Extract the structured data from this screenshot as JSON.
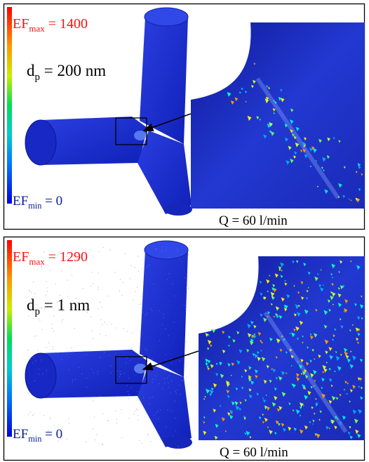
{
  "panels": [
    {
      "ef_max": {
        "symbol": "EF",
        "subscript": "max",
        "value": "= 1400"
      },
      "particle_size": {
        "symbol": "d",
        "subscript": "p",
        "value": "= 200 nm"
      },
      "ef_min": {
        "symbol": "EF",
        "subscript": "min",
        "value": "= 0"
      },
      "flow_rate": "Q = 60 l/min"
    },
    {
      "ef_max": {
        "symbol": "EF",
        "subscript": "max",
        "value": "= 1290"
      },
      "particle_size": {
        "symbol": "d",
        "subscript": "p",
        "value": "= 1 nm"
      },
      "ef_min": {
        "symbol": "EF",
        "subscript": "min",
        "value": "= 0"
      },
      "flow_rate": "Q = 60 l/min"
    }
  ]
}
